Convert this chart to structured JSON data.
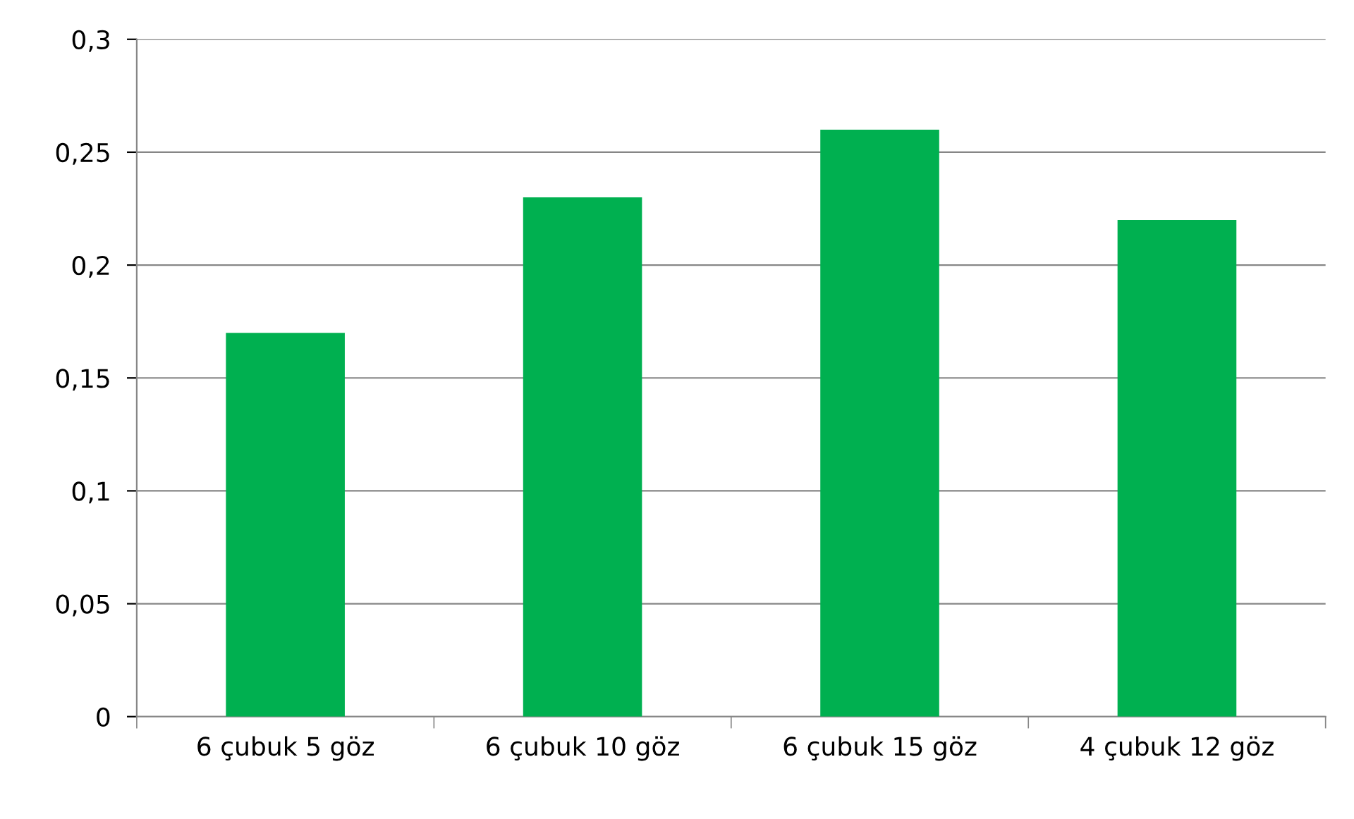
{
  "chart_data": {
    "type": "bar",
    "categories": [
      "6 çubuk 5 göz",
      "6 çubuk 10 göz",
      "6 çubuk 15 göz",
      "4 çubuk 12 göz"
    ],
    "values": [
      0.17,
      0.23,
      0.26,
      0.22
    ],
    "color": "#00b050",
    "ylim": [
      0,
      0.3
    ],
    "yticks": [
      0,
      {
        "value": 0.05,
        "label": "0,05"
      },
      {
        "value": 0.1,
        "label": "0,1"
      },
      {
        "value": 0.15,
        "label": "0,15"
      },
      {
        "value": 0.2,
        "label": "0,2"
      },
      {
        "value": 0.25,
        "label": "0,25"
      },
      {
        "value": 0.3,
        "label": "0,3"
      }
    ],
    "grid": "y",
    "legend": false
  }
}
